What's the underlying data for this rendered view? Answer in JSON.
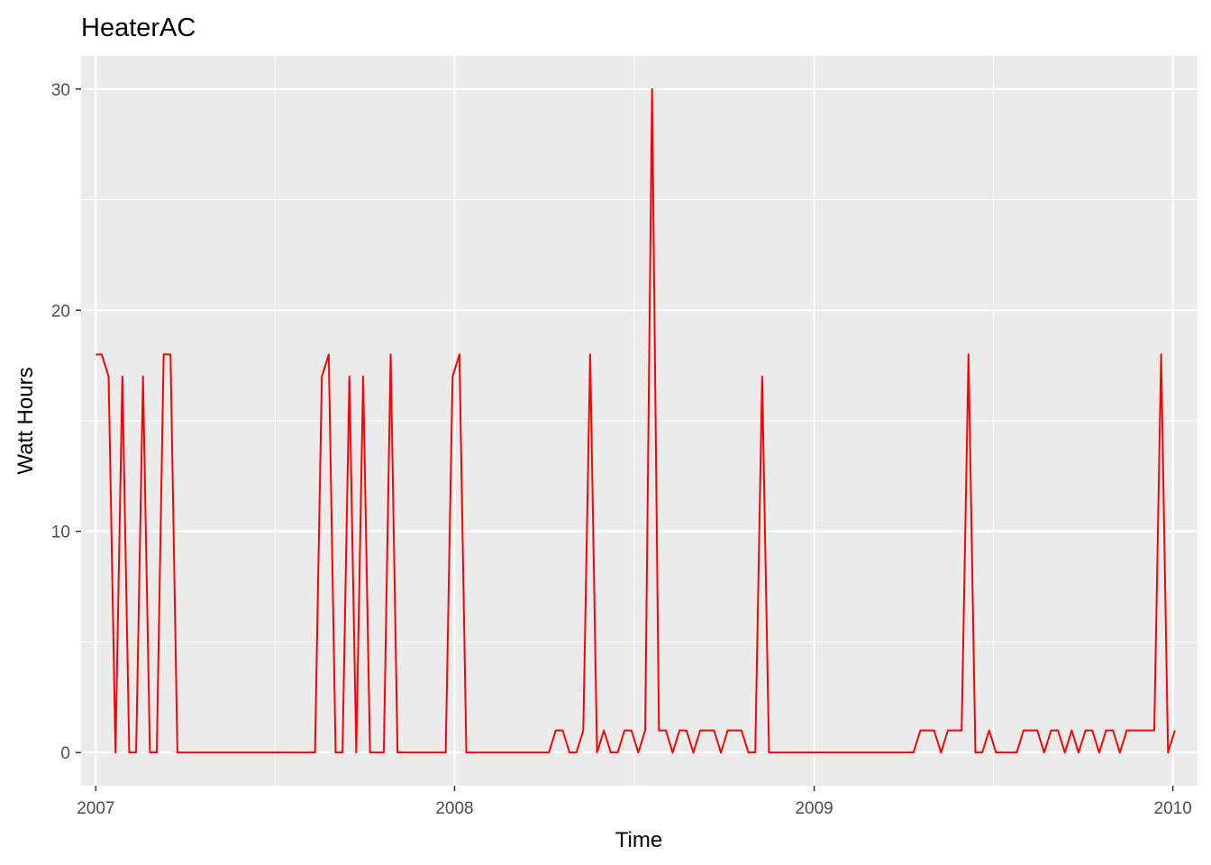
{
  "chart_data": {
    "type": "line",
    "title": "HeaterAC",
    "xlabel": "Time",
    "ylabel": "Watt Hours",
    "x_ticks": [
      "2007",
      "2008",
      "2009",
      "2010"
    ],
    "y_ticks": [
      0,
      10,
      20,
      30
    ],
    "xlim": [
      "2006-12-17",
      "2010-01-26"
    ],
    "ylim": [
      -1.5,
      31.5
    ],
    "grid": true,
    "line_color": "#ff0000",
    "panel_color": "#ebebeb",
    "series": [
      {
        "points": [
          [
            "2007-01-01",
            18
          ],
          [
            "2007-01-07",
            18
          ],
          [
            "2007-01-14",
            17
          ],
          [
            "2007-01-21",
            0
          ],
          [
            "2007-01-28",
            17
          ],
          [
            "2007-02-04",
            0
          ],
          [
            "2007-02-11",
            0
          ],
          [
            "2007-02-18",
            17
          ],
          [
            "2007-02-25",
            0
          ],
          [
            "2007-03-04",
            0
          ],
          [
            "2007-03-11",
            18
          ],
          [
            "2007-03-18",
            18
          ],
          [
            "2007-03-25",
            0
          ],
          [
            "2007-04-01",
            0
          ],
          [
            "2007-08-12",
            0
          ],
          [
            "2007-08-19",
            17
          ],
          [
            "2007-08-26",
            18
          ],
          [
            "2007-09-02",
            0
          ],
          [
            "2007-09-09",
            0
          ],
          [
            "2007-09-16",
            17
          ],
          [
            "2007-09-23",
            0
          ],
          [
            "2007-09-30",
            17
          ],
          [
            "2007-10-07",
            0
          ],
          [
            "2007-10-14",
            0
          ],
          [
            "2007-10-21",
            0
          ],
          [
            "2007-10-28",
            18
          ],
          [
            "2007-11-04",
            0
          ],
          [
            "2007-11-11",
            0
          ],
          [
            "2007-12-23",
            0
          ],
          [
            "2007-12-30",
            17
          ],
          [
            "2008-01-06",
            18
          ],
          [
            "2008-01-13",
            0
          ],
          [
            "2008-01-20",
            0
          ],
          [
            "2008-04-06",
            0
          ],
          [
            "2008-04-13",
            1
          ],
          [
            "2008-04-20",
            1
          ],
          [
            "2008-04-27",
            0
          ],
          [
            "2008-05-04",
            0
          ],
          [
            "2008-05-11",
            1
          ],
          [
            "2008-05-18",
            18
          ],
          [
            "2008-05-25",
            0
          ],
          [
            "2008-06-01",
            1
          ],
          [
            "2008-06-08",
            0
          ],
          [
            "2008-06-15",
            0
          ],
          [
            "2008-06-22",
            1
          ],
          [
            "2008-06-29",
            1
          ],
          [
            "2008-07-06",
            0
          ],
          [
            "2008-07-13",
            1
          ],
          [
            "2008-07-20",
            30
          ],
          [
            "2008-07-27",
            1
          ],
          [
            "2008-08-03",
            1
          ],
          [
            "2008-08-10",
            0
          ],
          [
            "2008-08-17",
            1
          ],
          [
            "2008-08-24",
            1
          ],
          [
            "2008-08-31",
            0
          ],
          [
            "2008-09-07",
            1
          ],
          [
            "2008-09-14",
            1
          ],
          [
            "2008-09-21",
            1
          ],
          [
            "2008-09-28",
            0
          ],
          [
            "2008-10-05",
            1
          ],
          [
            "2008-10-12",
            1
          ],
          [
            "2008-10-19",
            1
          ],
          [
            "2008-10-26",
            0
          ],
          [
            "2008-11-02",
            0
          ],
          [
            "2008-11-09",
            17
          ],
          [
            "2008-11-16",
            0
          ],
          [
            "2008-11-23",
            0
          ],
          [
            "2009-04-12",
            0
          ],
          [
            "2009-04-19",
            1
          ],
          [
            "2009-04-26",
            1
          ],
          [
            "2009-05-03",
            1
          ],
          [
            "2009-05-10",
            0
          ],
          [
            "2009-05-17",
            1
          ],
          [
            "2009-05-24",
            1
          ],
          [
            "2009-05-31",
            1
          ],
          [
            "2009-06-07",
            18
          ],
          [
            "2009-06-14",
            0
          ],
          [
            "2009-06-21",
            0
          ],
          [
            "2009-06-28",
            1
          ],
          [
            "2009-07-05",
            0
          ],
          [
            "2009-07-12",
            0
          ],
          [
            "2009-07-19",
            0
          ],
          [
            "2009-07-26",
            0
          ],
          [
            "2009-08-02",
            1
          ],
          [
            "2009-08-09",
            1
          ],
          [
            "2009-08-16",
            1
          ],
          [
            "2009-08-23",
            0
          ],
          [
            "2009-08-30",
            1
          ],
          [
            "2009-09-06",
            1
          ],
          [
            "2009-09-13",
            0
          ],
          [
            "2009-09-20",
            1
          ],
          [
            "2009-09-27",
            0
          ],
          [
            "2009-10-04",
            1
          ],
          [
            "2009-10-11",
            1
          ],
          [
            "2009-10-18",
            0
          ],
          [
            "2009-10-25",
            1
          ],
          [
            "2009-11-01",
            1
          ],
          [
            "2009-11-08",
            0
          ],
          [
            "2009-11-15",
            1
          ],
          [
            "2009-11-22",
            1
          ],
          [
            "2009-11-29",
            1
          ],
          [
            "2009-12-06",
            1
          ],
          [
            "2009-12-13",
            1
          ],
          [
            "2009-12-20",
            18
          ],
          [
            "2009-12-27",
            0
          ],
          [
            "2010-01-03",
            1
          ]
        ]
      }
    ]
  }
}
